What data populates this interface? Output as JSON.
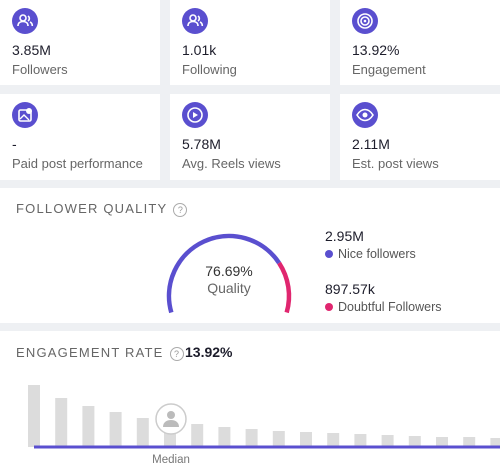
{
  "stats": [
    {
      "value": "3.85M",
      "label": "Followers"
    },
    {
      "value": "1.01k",
      "label": "Following"
    },
    {
      "value": "13.92%",
      "label": "Engagement"
    },
    {
      "value": "-",
      "label": "Paid post performance"
    },
    {
      "value": "5.78M",
      "label": "Avg. Reels views"
    },
    {
      "value": "2.11M",
      "label": "Est. post views"
    }
  ],
  "follower_quality": {
    "title": "FOLLOWER QUALITY",
    "quality": {
      "value": 76.69,
      "label": "76.69%"
    },
    "quality_caption": "Quality",
    "nice": {
      "value": "2.95M",
      "label": "Nice followers",
      "color": "#5a4fcf"
    },
    "doubtful": {
      "value": "897.57k",
      "label": "Doubtful Followers",
      "color": "#e0266f"
    }
  },
  "engagement_rate": {
    "title": "ENGAGEMENT RATE",
    "value": "13.92%",
    "distribution": [
      62,
      49,
      41,
      35,
      29,
      27,
      23,
      20,
      18,
      16,
      15,
      14,
      13,
      12,
      11,
      10,
      10,
      9
    ],
    "median_label": "Median"
  }
}
